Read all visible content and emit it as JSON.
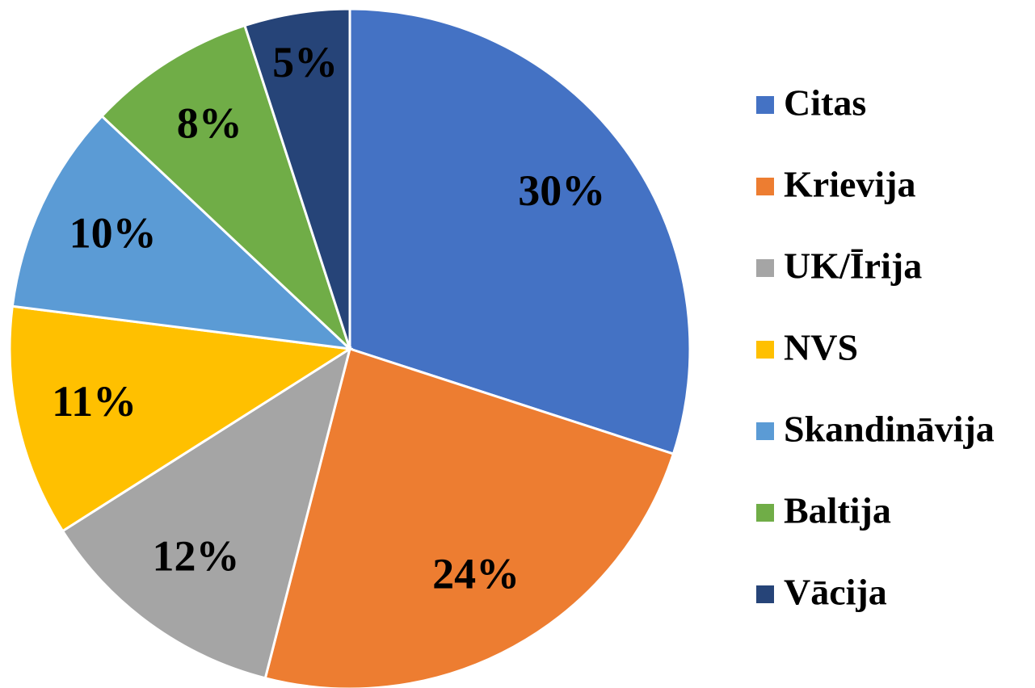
{
  "chart_data": {
    "type": "pie",
    "categories": [
      "Citas",
      "Krievija",
      "UK/Īrija",
      "NVS",
      "Skandināvija",
      "Baltija",
      "Vācija"
    ],
    "values": [
      30,
      24,
      12,
      11,
      10,
      8,
      5
    ],
    "value_labels": [
      "30%",
      "24%",
      "12%",
      "11%",
      "10%",
      "8%",
      "5%"
    ],
    "colors": [
      "#4472c4",
      "#ed7d31",
      "#a5a5a5",
      "#ffc000",
      "#5b9bd5",
      "#70ad47",
      "#264478"
    ],
    "legend": "right"
  }
}
